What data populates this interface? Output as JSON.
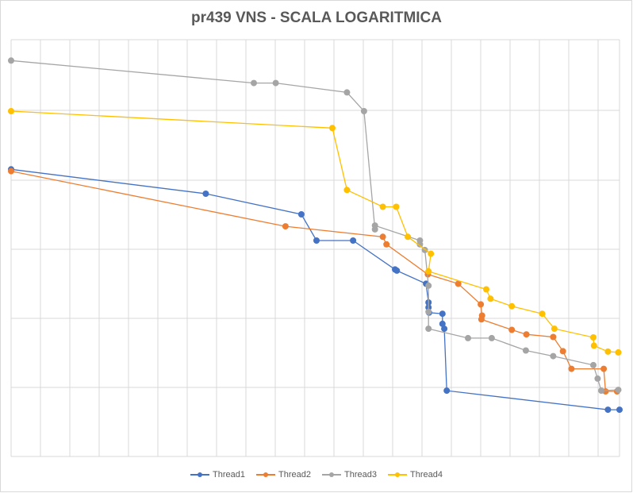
{
  "chart_data": {
    "type": "scatter",
    "title": "pr439 VNS - SCALA LOGARITMICA",
    "xlabel": "",
    "ylabel": "",
    "xlim": [
      0,
      1
    ],
    "ylim": [
      0,
      1
    ],
    "log_scale": true,
    "grid": true,
    "legend_position": "bottom",
    "series": [
      {
        "name": "Thread1",
        "color": "#4472C4",
        "points": [
          {
            "x": 0.0,
            "y": 0.71
          },
          {
            "x": 0.32,
            "y": 0.645
          },
          {
            "x": 0.477,
            "y": 0.59
          },
          {
            "x": 0.502,
            "y": 0.52
          },
          {
            "x": 0.562,
            "y": 0.52
          },
          {
            "x": 0.631,
            "y": 0.443
          },
          {
            "x": 0.634,
            "y": 0.44
          },
          {
            "x": 0.682,
            "y": 0.405
          },
          {
            "x": 0.686,
            "y": 0.355
          },
          {
            "x": 0.686,
            "y": 0.342
          },
          {
            "x": 0.687,
            "y": 0.328
          },
          {
            "x": 0.709,
            "y": 0.325
          },
          {
            "x": 0.709,
            "y": 0.298
          },
          {
            "x": 0.712,
            "y": 0.285
          },
          {
            "x": 0.716,
            "y": 0.12
          },
          {
            "x": 0.981,
            "y": 0.069
          },
          {
            "x": 1.0,
            "y": 0.069
          }
        ]
      },
      {
        "name": "Thread2",
        "color": "#ED7D31",
        "points": [
          {
            "x": 0.0,
            "y": 0.705
          },
          {
            "x": 0.451,
            "y": 0.558
          },
          {
            "x": 0.611,
            "y": 0.53
          },
          {
            "x": 0.617,
            "y": 0.51
          },
          {
            "x": 0.685,
            "y": 0.43
          },
          {
            "x": 0.735,
            "y": 0.405
          },
          {
            "x": 0.772,
            "y": 0.35
          },
          {
            "x": 0.774,
            "y": 0.32
          },
          {
            "x": 0.773,
            "y": 0.31
          },
          {
            "x": 0.823,
            "y": 0.282
          },
          {
            "x": 0.847,
            "y": 0.27
          },
          {
            "x": 0.891,
            "y": 0.263
          },
          {
            "x": 0.907,
            "y": 0.225
          },
          {
            "x": 0.921,
            "y": 0.178
          },
          {
            "x": 0.974,
            "y": 0.178
          },
          {
            "x": 0.977,
            "y": 0.118
          },
          {
            "x": 0.996,
            "y": 0.118
          }
        ]
      },
      {
        "name": "Thread3",
        "color": "#A5A5A5",
        "points": [
          {
            "x": 0.0,
            "y": 1.0
          },
          {
            "x": 0.399,
            "y": 0.94
          },
          {
            "x": 0.435,
            "y": 0.94
          },
          {
            "x": 0.552,
            "y": 0.915
          },
          {
            "x": 0.58,
            "y": 0.865
          },
          {
            "x": 0.598,
            "y": 0.55
          },
          {
            "x": 0.598,
            "y": 0.56
          },
          {
            "x": 0.672,
            "y": 0.52
          },
          {
            "x": 0.672,
            "y": 0.51
          },
          {
            "x": 0.68,
            "y": 0.495
          },
          {
            "x": 0.686,
            "y": 0.4
          },
          {
            "x": 0.686,
            "y": 0.33
          },
          {
            "x": 0.686,
            "y": 0.285
          },
          {
            "x": 0.751,
            "y": 0.26
          },
          {
            "x": 0.79,
            "y": 0.26
          },
          {
            "x": 0.846,
            "y": 0.227
          },
          {
            "x": 0.891,
            "y": 0.212
          },
          {
            "x": 0.957,
            "y": 0.188
          },
          {
            "x": 0.964,
            "y": 0.152
          },
          {
            "x": 0.97,
            "y": 0.12
          },
          {
            "x": 0.998,
            "y": 0.122
          }
        ]
      },
      {
        "name": "Thread4",
        "color": "#FFC000",
        "points": [
          {
            "x": 0.0,
            "y": 0.865
          },
          {
            "x": 0.528,
            "y": 0.82
          },
          {
            "x": 0.552,
            "y": 0.655
          },
          {
            "x": 0.611,
            "y": 0.61
          },
          {
            "x": 0.633,
            "y": 0.61
          },
          {
            "x": 0.652,
            "y": 0.53
          },
          {
            "x": 0.69,
            "y": 0.485
          },
          {
            "x": 0.686,
            "y": 0.438
          },
          {
            "x": 0.781,
            "y": 0.39
          },
          {
            "x": 0.788,
            "y": 0.365
          },
          {
            "x": 0.823,
            "y": 0.345
          },
          {
            "x": 0.873,
            "y": 0.325
          },
          {
            "x": 0.893,
            "y": 0.285
          },
          {
            "x": 0.957,
            "y": 0.262
          },
          {
            "x": 0.958,
            "y": 0.24
          },
          {
            "x": 0.981,
            "y": 0.224
          },
          {
            "x": 0.998,
            "y": 0.222
          }
        ]
      }
    ]
  }
}
